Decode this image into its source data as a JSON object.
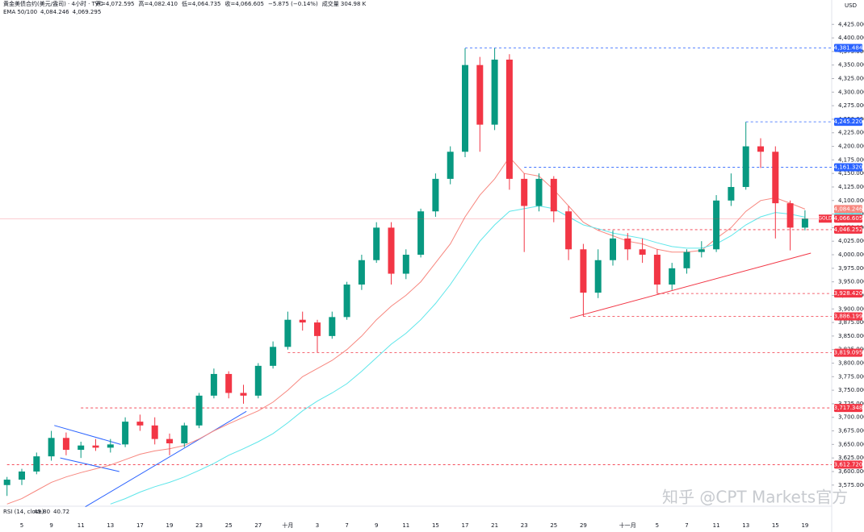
{
  "chart_data": {
    "type": "candlestick",
    "title": "黄金美债合约(美元/盎司) · 4小时 · TVC",
    "ohlc_legend": [
      "开=4,072.595",
      "高=4,082.410",
      "低=4,064.735",
      "收=4,066.605",
      "−5.875 (−0.14%)",
      "成交量 304.98 K"
    ],
    "currency": "USD",
    "watermark": "知乎 @CPT Markets官方",
    "categories": [
      null,
      "5",
      null,
      "9",
      null,
      "11",
      null,
      "13",
      null,
      "17",
      null,
      "19",
      null,
      "23",
      null,
      "25",
      null,
      "27",
      null,
      "十月",
      null,
      "3",
      null,
      "7",
      null,
      "9",
      null,
      "11",
      null,
      "15",
      null,
      "17",
      null,
      "21",
      null,
      "23",
      null,
      "25",
      null,
      "29",
      null,
      null,
      "十一月",
      null,
      "5",
      null,
      "7",
      null,
      "11",
      null,
      "13",
      null,
      "15",
      null,
      "19"
    ],
    "series": [
      {
        "name": "GOLD",
        "up_color": "#089981",
        "down_color": "#f23645",
        "values": [
          [
            3575,
            3590,
            3555,
            3585
          ],
          [
            3585,
            3605,
            3575,
            3600
          ],
          [
            3600,
            3635,
            3595,
            3628
          ],
          [
            3628,
            3675,
            3620,
            3662
          ],
          [
            3662,
            3672,
            3630,
            3640
          ],
          [
            3640,
            3655,
            3625,
            3648
          ],
          [
            3648,
            3660,
            3638,
            3644
          ],
          [
            3644,
            3660,
            3635,
            3650
          ],
          [
            3650,
            3700,
            3645,
            3692
          ],
          [
            3692,
            3705,
            3675,
            3685
          ],
          [
            3685,
            3700,
            3650,
            3660
          ],
          [
            3660,
            3670,
            3630,
            3652
          ],
          [
            3652,
            3690,
            3645,
            3685
          ],
          [
            3685,
            3745,
            3680,
            3740
          ],
          [
            3740,
            3790,
            3735,
            3780
          ],
          [
            3780,
            3785,
            3735,
            3745
          ],
          [
            3745,
            3760,
            3725,
            3740
          ],
          [
            3740,
            3800,
            3735,
            3795
          ],
          [
            3795,
            3840,
            3790,
            3830
          ],
          [
            3830,
            3895,
            3825,
            3880
          ],
          [
            3880,
            3895,
            3860,
            3875
          ],
          [
            3875,
            3880,
            3820,
            3850
          ],
          [
            3850,
            3895,
            3845,
            3885
          ],
          [
            3885,
            3950,
            3880,
            3945
          ],
          [
            3945,
            4000,
            3935,
            3990
          ],
          [
            3990,
            4060,
            3985,
            4050
          ],
          [
            4050,
            4060,
            3945,
            3965
          ],
          [
            3965,
            4010,
            3955,
            4000
          ],
          [
            4000,
            4085,
            3995,
            4080
          ],
          [
            4080,
            4150,
            4070,
            4140
          ],
          [
            4140,
            4200,
            4130,
            4190
          ],
          [
            4190,
            4381,
            4180,
            4350
          ],
          [
            4350,
            4365,
            4190,
            4240
          ],
          [
            4240,
            4381,
            4230,
            4360
          ],
          [
            4360,
            4370,
            4120,
            4140
          ],
          [
            4140,
            4150,
            4005,
            4090
          ],
          [
            4090,
            4150,
            4080,
            4140
          ],
          [
            4140,
            4145,
            4060,
            4080
          ],
          [
            4080,
            4090,
            3990,
            4010
          ],
          [
            4010,
            4020,
            3886,
            3930
          ],
          [
            3930,
            4010,
            3920,
            3990
          ],
          [
            3990,
            4045,
            3980,
            4030
          ],
          [
            4030,
            4040,
            3990,
            4010
          ],
          [
            4010,
            4030,
            3985,
            4000
          ],
          [
            4000,
            4010,
            3928,
            3945
          ],
          [
            3945,
            3985,
            3935,
            3975
          ],
          [
            3975,
            4010,
            3965,
            4005
          ],
          [
            4005,
            4025,
            3995,
            4010
          ],
          [
            4010,
            4110,
            4005,
            4100
          ],
          [
            4100,
            4150,
            4090,
            4125
          ],
          [
            4125,
            4245,
            4120,
            4200
          ],
          [
            4200,
            4215,
            4160,
            4190
          ],
          [
            4190,
            4200,
            4030,
            4095
          ],
          [
            4095,
            4100,
            4008,
            4050
          ],
          [
            4050,
            4082,
            4045,
            4066.605
          ]
        ],
        "last": {
          "value": 4066.605,
          "label": "4,066.605"
        }
      }
    ],
    "indicators": {
      "name": "EMA 50/100",
      "lines": [
        {
          "color": "#f7877f",
          "values": [
            3540,
            3550,
            3565,
            3580,
            3590,
            3598,
            3605,
            3612,
            3622,
            3632,
            3638,
            3642,
            3648,
            3660,
            3675,
            3688,
            3700,
            3712,
            3728,
            3750,
            3775,
            3790,
            3805,
            3825,
            3850,
            3880,
            3905,
            3925,
            3950,
            3985,
            4020,
            4070,
            4110,
            4140,
            4180,
            4150,
            4145,
            4120,
            4090,
            4060,
            4045,
            4035,
            4025,
            4020,
            4010,
            4005,
            4005,
            4008,
            4030,
            4050,
            4080,
            4100,
            4105,
            4095,
            4084.246
          ],
          "last": {
            "value": 4084.246,
            "label": "4,084.246"
          }
        },
        {
          "color": "#5ee6ea",
          "values": [
            null,
            null,
            null,
            null,
            null,
            null,
            null,
            3540,
            3550,
            3562,
            3572,
            3580,
            3590,
            3602,
            3615,
            3630,
            3642,
            3655,
            3670,
            3690,
            3712,
            3730,
            3745,
            3762,
            3785,
            3810,
            3835,
            3855,
            3880,
            3910,
            3945,
            3985,
            4025,
            4055,
            4080,
            4085,
            4090,
            4085,
            4070,
            4055,
            4048,
            4040,
            4035,
            4030,
            4022,
            4015,
            4012,
            4012,
            4020,
            4035,
            4055,
            4070,
            4078,
            4075,
            4069.295
          ],
          "last": {
            "value": 4069.295,
            "label": "4,069.295"
          }
        }
      ]
    },
    "levels": [
      {
        "value": 4381.484,
        "label": "4,381.484",
        "color": "#2962ff",
        "from": 31
      },
      {
        "value": 4245.22,
        "label": "4,245.220",
        "color": "#2962ff",
        "from": 50
      },
      {
        "value": 4161.32,
        "label": "4,161.320",
        "color": "#2962ff",
        "from": 35
      },
      {
        "value": 4046.252,
        "label": "4,046.252",
        "color": "#f23645",
        "from": 40
      },
      {
        "value": 3928.42,
        "label": "3,928.420",
        "color": "#f23645",
        "from": 44
      },
      {
        "value": 3886.199,
        "label": "3,886.199",
        "color": "#f23645",
        "from": 39
      },
      {
        "value": 3819.095,
        "label": "3,819.095",
        "color": "#f23645",
        "from": 19
      },
      {
        "value": 3717.348,
        "label": "3,717.348",
        "color": "#f23645",
        "from": 5
      },
      {
        "value": 3612.72,
        "label": "3,612.720",
        "color": "#f23645",
        "from": 0
      }
    ],
    "trendlines": [
      {
        "color": "#2962ff",
        "points": [
          [
            3.2,
            3685
          ],
          [
            7.7,
            3650
          ]
        ]
      },
      {
        "color": "#2962ff",
        "points": [
          [
            3.6,
            3625
          ],
          [
            7.6,
            3600
          ]
        ]
      },
      {
        "color": "#2962ff",
        "points": [
          [
            5.3,
            3535
          ],
          [
            16.2,
            3711
          ]
        ]
      },
      {
        "color": "#f23645",
        "points": [
          [
            38.1,
            3883
          ],
          [
            54.4,
            4003
          ]
        ]
      }
    ],
    "rsi": {
      "name": "RSI (14, close)",
      "values": [
        {
          "value": 45.8,
          "label": "45.80",
          "color": "#7e57c2"
        },
        {
          "value": 40.72,
          "label": "40.72",
          "color": "#f7c548"
        }
      ]
    },
    "ylim": [
      3536,
      4470
    ],
    "yticks": [
      {
        "value": 3575,
        "label": "3,575.000"
      },
      {
        "value": 3600,
        "label": "3,600.000"
      },
      {
        "value": 3625,
        "label": "3,625.000"
      },
      {
        "value": 3650,
        "label": "3,650.000"
      },
      {
        "value": 3675,
        "label": "3,675.000"
      },
      {
        "value": 3700,
        "label": "3,700.000"
      },
      {
        "value": 3725,
        "label": "3,725.000"
      },
      {
        "value": 3750,
        "label": "3,750.000"
      },
      {
        "value": 3775,
        "label": "3,775.000"
      },
      {
        "value": 3800,
        "label": "3,800.000"
      },
      {
        "value": 3825,
        "label": "3,825.000"
      },
      {
        "value": 3850,
        "label": "3,850.000"
      },
      {
        "value": 3875,
        "label": "3,875.000"
      },
      {
        "value": 3900,
        "label": "3,900.000"
      },
      {
        "value": 3925,
        "label": "3,925.000"
      },
      {
        "value": 3950,
        "label": "3,950.000"
      },
      {
        "value": 3975,
        "label": "3,975.000"
      },
      {
        "value": 4000,
        "label": "4,000.000"
      },
      {
        "value": 4025,
        "label": "4,025.000"
      },
      {
        "value": 4050,
        "label": "4,050.000"
      },
      {
        "value": 4075,
        "label": "4,075.000"
      },
      {
        "value": 4100,
        "label": "4,100.000"
      },
      {
        "value": 4125,
        "label": "4,125.000"
      },
      {
        "value": 4150,
        "label": "4,150.000"
      },
      {
        "value": 4175,
        "label": "4,175.000"
      },
      {
        "value": 4200,
        "label": "4,200.000"
      },
      {
        "value": 4225,
        "label": "4,225.000"
      },
      {
        "value": 4250,
        "label": "4,250.000"
      },
      {
        "value": 4275,
        "label": "4,275.000"
      },
      {
        "value": 4300,
        "label": "4,300.000"
      },
      {
        "value": 4325,
        "label": "4,325.000"
      },
      {
        "value": 4350,
        "label": "4,350.000"
      },
      {
        "value": 4375,
        "label": "4,375.000"
      },
      {
        "value": 4400,
        "label": "4,400.000"
      },
      {
        "value": 4425,
        "label": "4,425.000"
      }
    ]
  }
}
